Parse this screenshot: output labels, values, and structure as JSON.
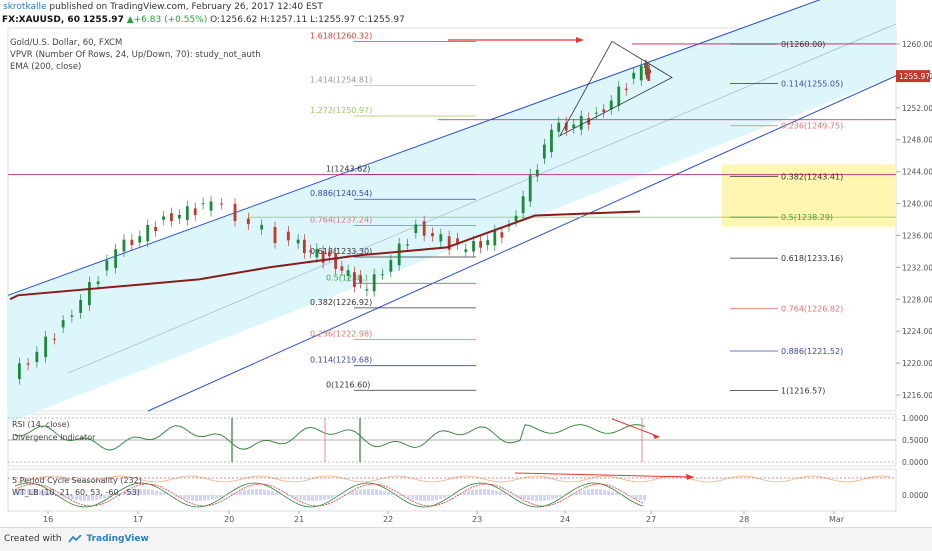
{
  "header": {
    "author": "skrotkalle",
    "published_text": " published on TradingView.com, February 26, 2017 12:40 EST"
  },
  "ohlc_line": {
    "symbol": "FX:XAUUSD, 60",
    "last": "1255.97",
    "change": "▲+6.83 (+0.55%)",
    "o": "O:1256.62",
    "h": "H:1257.11",
    "l": "L:1255.97",
    "c": "C:1255.97"
  },
  "studies": {
    "title": "Gold/U.S. Dollar, 60, FXCM",
    "vpvr": "VPVR (Number Of Rows, 24, Up/Down, 70): study_not_auth",
    "ema": "EMA (200, close)"
  },
  "indicators": {
    "rsi_label": "RSI (14, close)",
    "divergence_label": "Divergence Indicator",
    "seasonality_label": "5 Period Cycle Seasonality (232)",
    "wt_label": "WT_LB (10, 21, 60, 53, -60, -53)"
  },
  "footer": {
    "created_with": "Created with",
    "brand": "TradingView"
  },
  "colors": {
    "up": "#1a8a3a",
    "down": "#c0392b",
    "ema": "#8b1a1a",
    "channel_fill": "#d7f4fb",
    "channel_line": "#2a4fd0",
    "fib_red": "#e53935",
    "fib_magenta": "#c2185b",
    "highlight": "#fff59d",
    "rsi": "#2e7d32"
  },
  "chart_data": {
    "type": "candlestick",
    "symbol": "XAUUSD",
    "timeframe": "60",
    "ylim": [
      1214,
      1262
    ],
    "y_ticks": [
      1216,
      1220,
      1224,
      1228,
      1232,
      1236,
      1240,
      1244,
      1248,
      1252,
      1256,
      1260
    ],
    "x_tick_labels": [
      "16",
      "17",
      "20",
      "21",
      "22",
      "23",
      "24",
      "27",
      "28",
      "Mar"
    ],
    "last_price": 1255.97,
    "candles_approx": [
      {
        "day": "16",
        "open": 1218,
        "high": 1226,
        "low": 1216.6,
        "close": 1225
      },
      {
        "day": "16",
        "open": 1225,
        "high": 1236,
        "low": 1224,
        "close": 1234
      },
      {
        "day": "17",
        "open": 1234,
        "high": 1240,
        "low": 1233,
        "close": 1238
      },
      {
        "day": "17",
        "open": 1238,
        "high": 1243.6,
        "low": 1236,
        "close": 1240
      },
      {
        "day": "20",
        "open": 1240,
        "high": 1241,
        "low": 1233,
        "close": 1235
      },
      {
        "day": "21",
        "open": 1235,
        "high": 1237,
        "low": 1230,
        "close": 1233
      },
      {
        "day": "21",
        "open": 1233,
        "high": 1235,
        "low": 1226,
        "close": 1229
      },
      {
        "day": "22",
        "open": 1229,
        "high": 1238,
        "low": 1228,
        "close": 1237
      },
      {
        "day": "22",
        "open": 1237,
        "high": 1240,
        "low": 1233,
        "close": 1234
      },
      {
        "day": "23",
        "open": 1234,
        "high": 1238,
        "low": 1233,
        "close": 1237
      },
      {
        "day": "23",
        "open": 1237,
        "high": 1250,
        "low": 1236,
        "close": 1249
      },
      {
        "day": "24",
        "open": 1249,
        "high": 1253,
        "low": 1247,
        "close": 1251
      },
      {
        "day": "24",
        "open": 1251,
        "high": 1260.32,
        "low": 1250,
        "close": 1257
      },
      {
        "day": "27",
        "open": 1257,
        "high": 1258,
        "low": 1255.5,
        "close": 1255.97
      }
    ],
    "ema_200": [
      {
        "day": "16",
        "value": 1228.5
      },
      {
        "day": "20",
        "value": 1230.5
      },
      {
        "day": "21",
        "value": 1232
      },
      {
        "day": "22",
        "value": 1233.5
      },
      {
        "day": "23",
        "value": 1234.5
      },
      {
        "day": "24",
        "value": 1238.5
      }
    ],
    "fib_left": [
      {
        "label": "1.618(1260.32)",
        "value": 1260.32
      },
      {
        "label": "1.414(1254.81)",
        "value": 1254.81
      },
      {
        "label": "1.272(1250.97)",
        "value": 1250.97
      },
      {
        "label": "1(1243.62)",
        "value": 1243.62
      },
      {
        "label": "0.886(1240.54)",
        "value": 1240.54
      },
      {
        "label": "0.764(1237.24)",
        "value": 1237.24
      },
      {
        "label": "0.618(1233.30)",
        "value": 1233.3
      },
      {
        "label": "0.5(1230.)",
        "value": 1230.0
      },
      {
        "label": "0.382(1226.92)",
        "value": 1226.92
      },
      {
        "label": "0.236(1222.98)",
        "value": 1222.98
      },
      {
        "label": "0.114(1219.68)",
        "value": 1219.68
      },
      {
        "label": "0(1216.60)",
        "value": 1216.6
      }
    ],
    "fib_right": [
      {
        "label": "0(1260.00)",
        "value": 1260.0
      },
      {
        "label": "0.114(1255.05)",
        "value": 1255.05
      },
      {
        "label": "0.236(1249.75)",
        "value": 1249.75
      },
      {
        "label": "0.382(1243.41)",
        "value": 1243.41
      },
      {
        "label": "0.5(1238.29)",
        "value": 1238.29
      },
      {
        "label": "0.618(1233.16)",
        "value": 1233.16
      },
      {
        "label": "0.764(1226.82)",
        "value": 1226.82
      },
      {
        "label": "0.886(1221.52)",
        "value": 1221.52
      },
      {
        "label": "1(1216.57)",
        "value": 1216.57
      }
    ],
    "rsi_ticks": [
      "1.0000",
      "0.5000",
      "0.0000"
    ],
    "wt_ticks": [
      "0.0000"
    ]
  }
}
